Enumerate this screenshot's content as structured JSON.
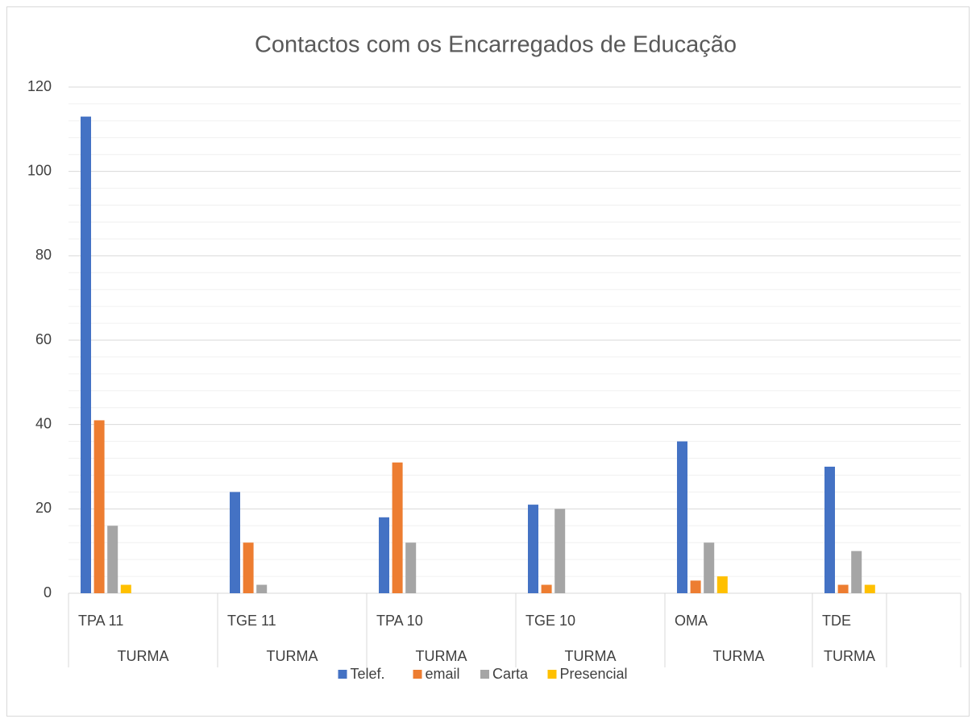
{
  "chart_data": {
    "type": "bar",
    "title": "Contactos com os Encarregados de Educação",
    "categories": [
      "TPA 11",
      "TGE 11",
      "TPA 10",
      "TGE 10",
      "OMA",
      "TDE"
    ],
    "group_labels": [
      "TURMA",
      "TURMA",
      "TURMA",
      "TURMA",
      "TURMA",
      "TURMA"
    ],
    "series": [
      {
        "name": "Telef.",
        "color": "#4472c4",
        "values": [
          113,
          24,
          18,
          21,
          36,
          30
        ]
      },
      {
        "name": "email",
        "color": "#ed7d31",
        "values": [
          41,
          12,
          31,
          2,
          3,
          2
        ]
      },
      {
        "name": "Carta",
        "color": "#a5a5a5",
        "values": [
          16,
          2,
          12,
          20,
          12,
          10
        ]
      },
      {
        "name": "Presencial",
        "color": "#ffc000",
        "values": [
          2,
          0,
          0,
          0,
          4,
          2
        ]
      }
    ],
    "ylim": [
      0,
      120
    ],
    "yticks": [
      0,
      20,
      40,
      60,
      80,
      100,
      120
    ],
    "minor_yticks": [
      4,
      8,
      12,
      16,
      24,
      28,
      32,
      36,
      44,
      48,
      52,
      56,
      64,
      68,
      72,
      76,
      84,
      88,
      92,
      96,
      104,
      108,
      112,
      116
    ],
    "grid": true,
    "legend": "bottom"
  }
}
